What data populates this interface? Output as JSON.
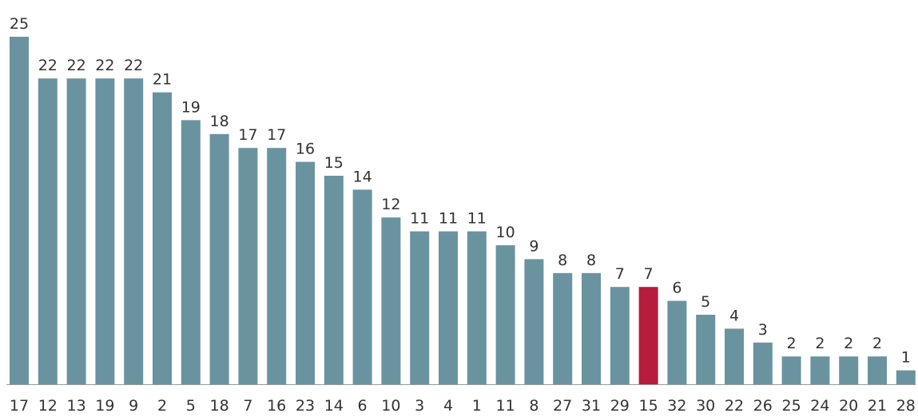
{
  "chart_data": {
    "type": "bar",
    "categories": [
      "17",
      "12",
      "13",
      "19",
      "9",
      "2",
      "5",
      "18",
      "7",
      "16",
      "23",
      "14",
      "6",
      "10",
      "3",
      "4",
      "1",
      "11",
      "8",
      "27",
      "31",
      "29",
      "15",
      "32",
      "30",
      "22",
      "26",
      "25",
      "24",
      "20",
      "21",
      "28"
    ],
    "values": [
      25,
      22,
      22,
      22,
      22,
      21,
      19,
      18,
      17,
      17,
      16,
      15,
      14,
      12,
      11,
      11,
      11,
      10,
      9,
      8,
      8,
      7,
      7,
      6,
      5,
      4,
      3,
      2,
      2,
      2,
      2,
      1
    ],
    "highlight_category": "15",
    "ylim": [
      0,
      25
    ],
    "grid": false,
    "legend": "none",
    "colors": {
      "bar": "#6a93a0",
      "highlight": "#b71c3d",
      "baseline": "#999999",
      "text": "#333333"
    }
  }
}
